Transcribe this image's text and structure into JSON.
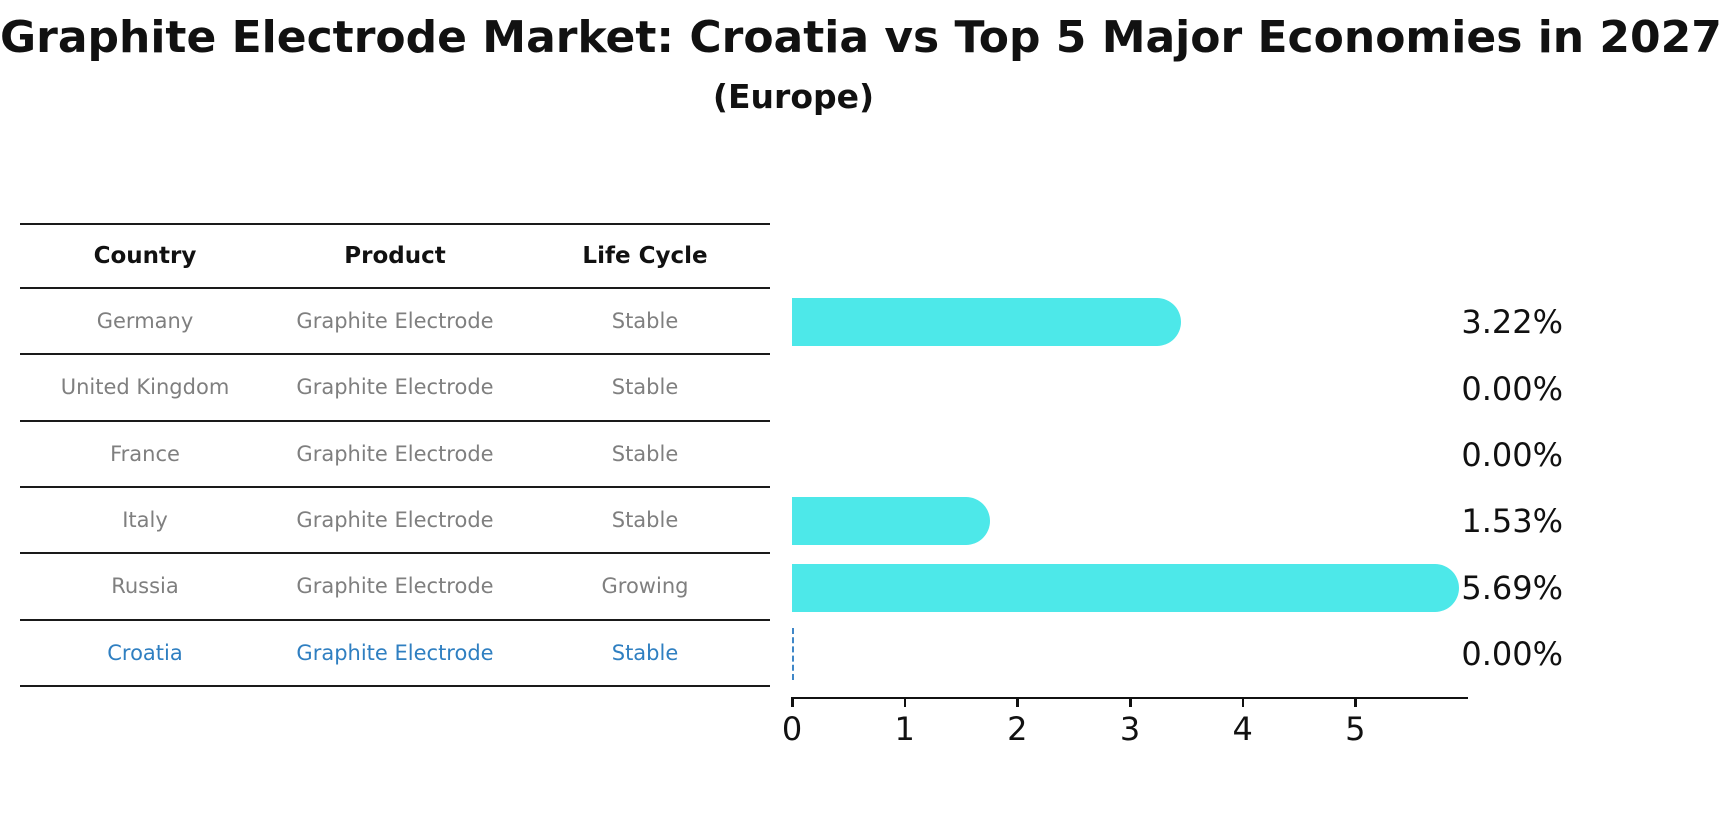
{
  "title": "Graphite Electrode Market: Croatia vs Top 5 Major Economies in 2027",
  "subtitle": "(Europe)",
  "table": {
    "headers": [
      "Country",
      "Product",
      "Life Cycle"
    ],
    "highlight_row": 5,
    "rows": [
      {
        "country": "Germany",
        "product": "Graphite Electrode",
        "life_cycle": "Stable"
      },
      {
        "country": "United Kingdom",
        "product": "Graphite Electrode",
        "life_cycle": "Stable"
      },
      {
        "country": "France",
        "product": "Graphite Electrode",
        "life_cycle": "Stable"
      },
      {
        "country": "Italy",
        "product": "Graphite Electrode",
        "life_cycle": "Stable"
      },
      {
        "country": "Russia",
        "product": "Graphite Electrode",
        "life_cycle": "Growing"
      },
      {
        "country": "Croatia",
        "product": "Graphite Electrode",
        "life_cycle": "Stable"
      }
    ]
  },
  "chart_data": {
    "type": "bar",
    "orientation": "horizontal",
    "title": "Graphite Electrode Market: Croatia vs Top 5 Major Economies in 2027 (Europe)",
    "categories": [
      "Germany",
      "United Kingdom",
      "France",
      "Italy",
      "Russia",
      "Croatia"
    ],
    "values": [
      3.22,
      0.0,
      0.0,
      1.53,
      5.69,
      0.0
    ],
    "value_labels": [
      "3.22%",
      "0.00%",
      "0.00%",
      "1.53%",
      "5.69%",
      "0.00%"
    ],
    "xlabel": "",
    "ylabel": "",
    "xlim": [
      0,
      6
    ],
    "xticks": [
      0,
      1,
      2,
      3,
      4,
      5
    ],
    "grid": "off",
    "legend": "none",
    "bar_color": "#4DE8E9",
    "highlight_color": "#2F7FC1",
    "highlight_category": "Croatia",
    "highlight_marker": "dashed zero line"
  }
}
